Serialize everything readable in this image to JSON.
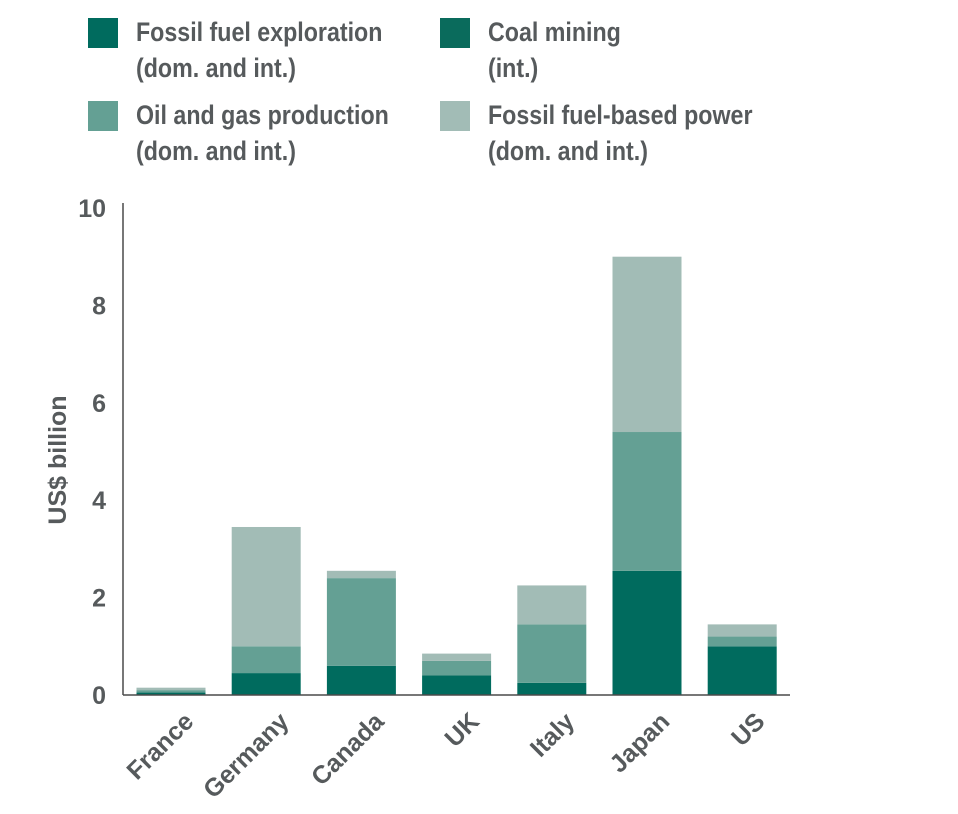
{
  "chart_data": {
    "type": "bar",
    "stacked": true,
    "categories": [
      "France",
      "Germany",
      "Canada",
      "UK",
      "Italy",
      "Japan",
      "US"
    ],
    "series": [
      {
        "name": "Fossil fuel exploration\n(dom. and int.)",
        "color": "#006b5e",
        "values": [
          0.05,
          0.45,
          0.6,
          0.4,
          0.25,
          2.55,
          1.0
        ]
      },
      {
        "name": "Coal mining\n(int.)",
        "color": "#0a6b5c",
        "values": [
          0,
          0,
          0,
          0,
          0,
          0,
          0
        ]
      },
      {
        "name": "Oil and gas production\n(dom. and int.)",
        "color": "#64a094",
        "values": [
          0.05,
          0.55,
          1.8,
          0.3,
          1.2,
          2.85,
          0.2
        ]
      },
      {
        "name": "Fossil fuel-based power\n(dom. and int.)",
        "color": "#a2bcb6",
        "values": [
          0.05,
          2.45,
          0.15,
          0.15,
          0.8,
          3.6,
          0.25
        ]
      }
    ],
    "title": "",
    "xlabel": "",
    "ylabel": "US$ billion",
    "ylim": [
      0,
      10
    ],
    "yticks": [
      "0",
      "2",
      "4",
      "6",
      "8",
      "10"
    ],
    "grid": false,
    "legend_placement": "top"
  }
}
